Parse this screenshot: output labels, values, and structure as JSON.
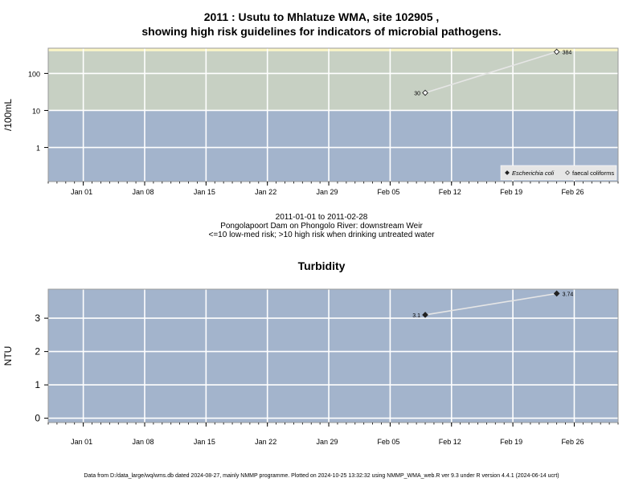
{
  "page": {
    "title_line1": "2011 : Usutu to Mhlatuze WMA, site 102905 ,",
    "title_line2": "showing high risk guidelines for indicators of microbial pathogens.",
    "date_range": "2011-01-01 to 2011-02-28",
    "site_name": "Pongolapoort Dam on Phongolo River: downstream Weir",
    "risk_note": "<=10 low-med risk; >10 high risk when drinking untreated water",
    "turbidity_title": "Turbidity",
    "footer": "Data from D:/data_large/wq/wms.db dated 2024-08-27, mainly NMMP programme. Plotted on 2024-10-25 13:32:32 using NMMP_WMA_web.R ver 9.3 under R version 4.4.1 (2024-06-14 ucrt)"
  },
  "colors": {
    "low_risk_band": "#a3b4cc",
    "high_risk_band": "#c7d0c3",
    "top_band": "#fbf5c4",
    "series_line": "#e6e6e6",
    "grid": "#ffffff",
    "axis_text": "#000000"
  },
  "chart_data": [
    {
      "type": "scatter",
      "name": "microbial",
      "title": "2011 : Usutu to Mhlatuze WMA, site 102905 , showing high risk guidelines for indicators of microbial pathogens.",
      "ylabel": "/100mL",
      "yscale": "log",
      "yticks": [
        1,
        10,
        100
      ],
      "ytick_labels": [
        "1",
        "10",
        "100"
      ],
      "ylim": [
        0.12,
        480
      ],
      "xlim": [
        "2010-12-28",
        "2011-03-03"
      ],
      "xticks": [
        "2011-01-01",
        "2011-01-08",
        "2011-01-15",
        "2011-01-22",
        "2011-01-29",
        "2011-02-05",
        "2011-02-12",
        "2011-02-19",
        "2011-02-26"
      ],
      "xtick_labels": [
        "Jan 01",
        "Jan 08",
        "Jan 15",
        "Jan 22",
        "Jan 29",
        "Feb 05",
        "Feb 12",
        "Feb 19",
        "Feb 26"
      ],
      "bands": [
        {
          "from": 0.12,
          "to": 10,
          "color": "#a3b4cc"
        },
        {
          "from": 10,
          "to": 400,
          "color": "#c7d0c3"
        },
        {
          "from": 400,
          "to": 480,
          "color": "#fbf5c4"
        }
      ],
      "series": [
        {
          "name": "Escherichia coli",
          "marker": "filled-diamond",
          "points": []
        },
        {
          "name": "faecal coliforms",
          "marker": "open-diamond",
          "points": [
            {
              "x": "2011-02-09",
              "y": 30,
              "label": "30"
            },
            {
              "x": "2011-02-24",
              "y": 384,
              "label": "384"
            }
          ]
        }
      ],
      "legend_position": "bottom-right",
      "grid": true
    },
    {
      "type": "scatter",
      "name": "turbidity",
      "title": "Turbidity",
      "ylabel": "NTU",
      "yscale": "linear",
      "yticks": [
        0,
        1,
        2,
        3
      ],
      "ytick_labels": [
        "0",
        "1",
        "2",
        "3"
      ],
      "ylim": [
        -0.13,
        3.87
      ],
      "xlim": [
        "2010-12-28",
        "2011-03-03"
      ],
      "xticks": [
        "2011-01-01",
        "2011-01-08",
        "2011-01-15",
        "2011-01-22",
        "2011-01-29",
        "2011-02-05",
        "2011-02-12",
        "2011-02-19",
        "2011-02-26"
      ],
      "xtick_labels": [
        "Jan 01",
        "Jan 08",
        "Jan 15",
        "Jan 22",
        "Jan 29",
        "Feb 05",
        "Feb 12",
        "Feb 19",
        "Feb 26"
      ],
      "bands": [
        {
          "from": -0.13,
          "to": 3.87,
          "color": "#a3b4cc"
        }
      ],
      "series": [
        {
          "name": "Turbidity",
          "marker": "filled-diamond",
          "points": [
            {
              "x": "2011-02-09",
              "y": 3.1,
              "label": "3.1"
            },
            {
              "x": "2011-02-24",
              "y": 3.74,
              "label": "3.74"
            }
          ]
        }
      ],
      "grid": true
    }
  ]
}
